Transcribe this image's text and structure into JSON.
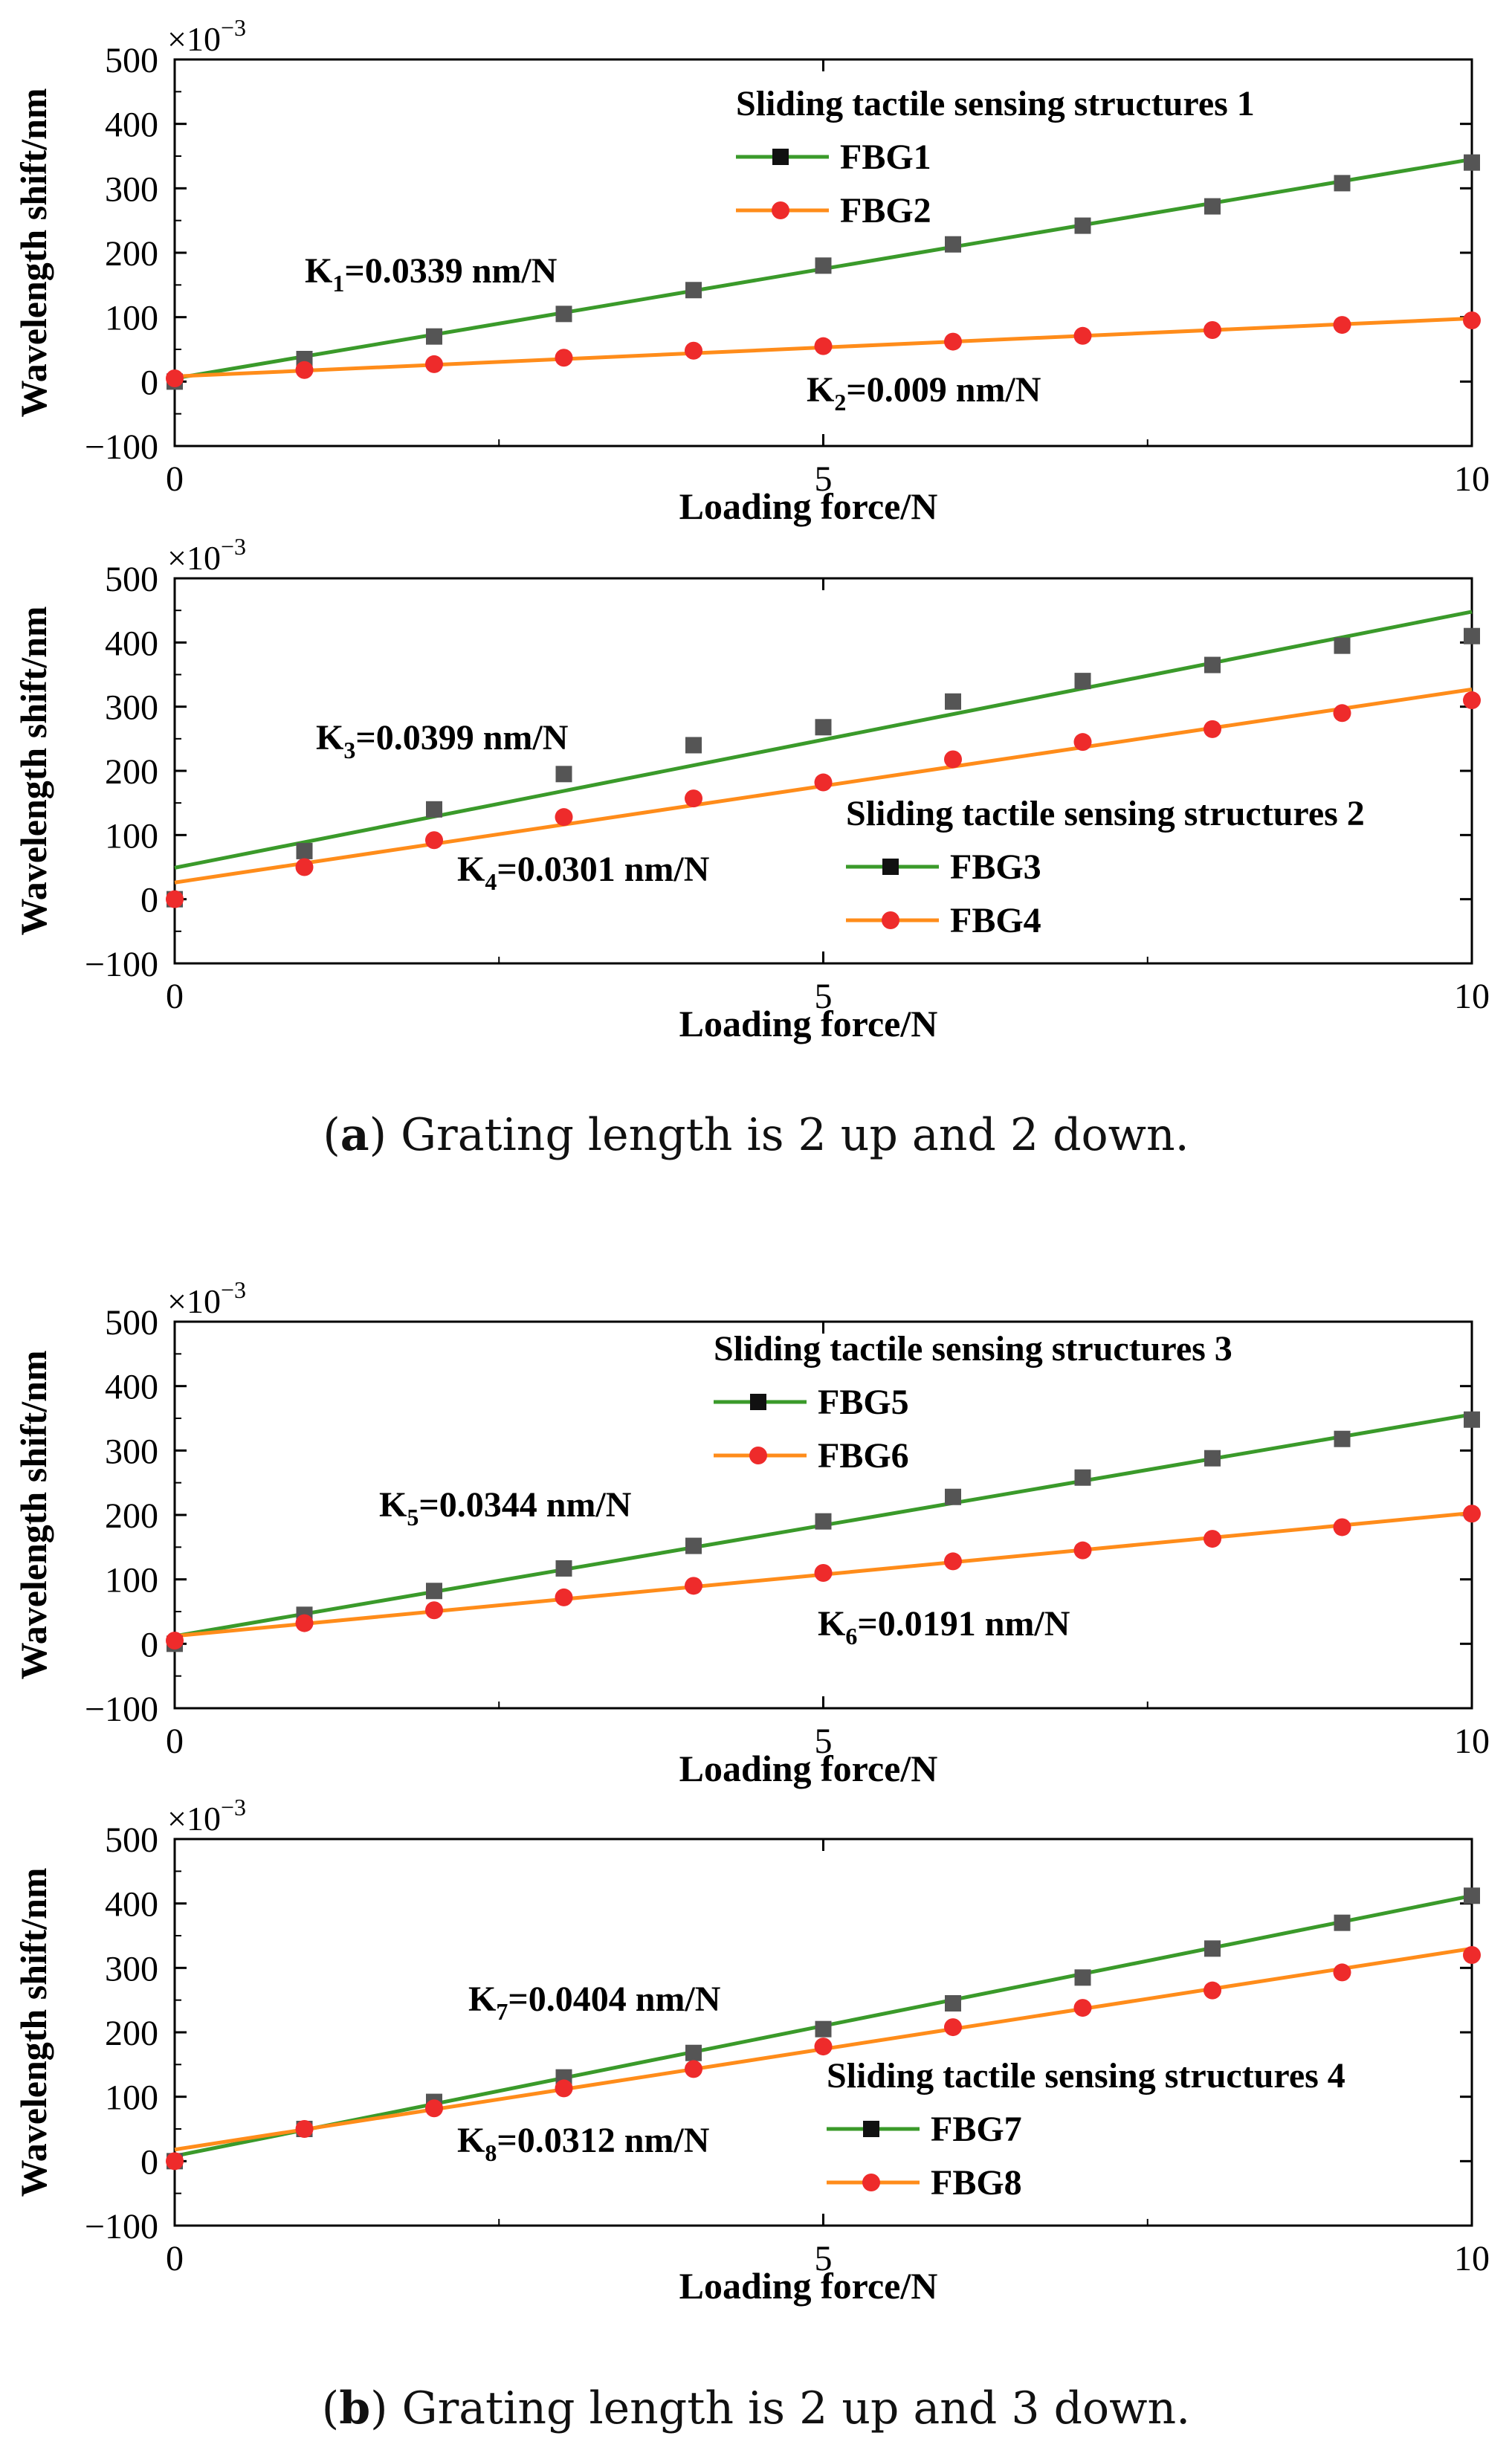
{
  "colors": {
    "green_line": "#3a9a2a",
    "orange_line": "#ff8c1a",
    "square_marker": "#555555",
    "circle_marker": "#ee2b2b",
    "axis": "#000000"
  },
  "captions": [
    {
      "label": "(a)",
      "label_inner": "a",
      "text": "Grating length is 2 up and 2 down."
    },
    {
      "label": "(b)",
      "label_inner": "b",
      "text": "Grating length is 2 up and 3 down."
    }
  ],
  "chart_data": [
    {
      "type": "scatter",
      "title": "",
      "xlabel": "Loading force/N",
      "ylabel": "Wavelength shift/nm",
      "scale_label": "×10",
      "scale_exp": "−3",
      "xlim": [
        0,
        10
      ],
      "ylim": [
        -100,
        500
      ],
      "xticks": [
        0,
        5,
        10
      ],
      "yticks": [
        -100,
        0,
        100,
        200,
        300,
        400,
        500
      ],
      "legend_title": "Sliding tactile sensing structures 1",
      "legend_placement": "top-right",
      "x": [
        0,
        1,
        2,
        3,
        4,
        5,
        6,
        7,
        8,
        9,
        10
      ],
      "series": [
        {
          "name": "FBG1",
          "marker": "square",
          "color": "#555555",
          "line_color": "#3a9a2a",
          "values": [
            0,
            35,
            70,
            105,
            142,
            180,
            213,
            242,
            272,
            308,
            340
          ],
          "fit": {
            "slope": 34,
            "intercept": 5
          },
          "annotation": {
            "K": "K",
            "sub": "1",
            "rest": "=0.0339 nm/N"
          }
        },
        {
          "name": "FBG2",
          "marker": "circle",
          "color": "#ee2b2b",
          "line_color": "#ff8c1a",
          "values": [
            5,
            18,
            27,
            37,
            48,
            55,
            62,
            71,
            80,
            88,
            95
          ],
          "fit": {
            "slope": 9,
            "intercept": 8
          },
          "annotation": {
            "K": "K",
            "sub": "2",
            "rest": "=0.009 nm/N"
          }
        }
      ]
    },
    {
      "type": "scatter",
      "title": "",
      "xlabel": "Loading force/N",
      "ylabel": "Wavelength shift/nm",
      "scale_label": "×10",
      "scale_exp": "−3",
      "xlim": [
        0,
        10
      ],
      "ylim": [
        -100,
        500
      ],
      "xticks": [
        0,
        5,
        10
      ],
      "yticks": [
        -100,
        0,
        100,
        200,
        300,
        400,
        500
      ],
      "legend_title": "Sliding tactile sensing structures 2",
      "legend_placement": "bottom-right",
      "x": [
        0,
        1,
        2,
        3,
        4,
        5,
        6,
        7,
        8,
        9,
        10
      ],
      "series": [
        {
          "name": "FBG3",
          "marker": "square",
          "color": "#555555",
          "line_color": "#3a9a2a",
          "values": [
            0,
            75,
            140,
            195,
            240,
            268,
            308,
            340,
            365,
            395,
            410
          ],
          "fit": {
            "slope": 39.9,
            "intercept": 49
          },
          "annotation": {
            "K": "K",
            "sub": "3",
            "rest": "=0.0399 nm/N"
          }
        },
        {
          "name": "FBG4",
          "marker": "circle",
          "color": "#ee2b2b",
          "line_color": "#ff8c1a",
          "values": [
            0,
            50,
            92,
            128,
            157,
            182,
            218,
            245,
            265,
            290,
            310
          ],
          "fit": {
            "slope": 30.1,
            "intercept": 26
          },
          "annotation": {
            "K": "K",
            "sub": "4",
            "rest": "=0.0301 nm/N"
          }
        }
      ]
    },
    {
      "type": "scatter",
      "title": "",
      "xlabel": "Loading force/N",
      "ylabel": "Wavelength shift/nm",
      "scale_label": "×10",
      "scale_exp": "−3",
      "xlim": [
        0,
        10
      ],
      "ylim": [
        -100,
        500
      ],
      "xticks": [
        0,
        5,
        10
      ],
      "yticks": [
        -100,
        0,
        100,
        200,
        300,
        400,
        500
      ],
      "legend_title": "Sliding tactile sensing structures 3",
      "legend_placement": "top-right",
      "x": [
        0,
        1,
        2,
        3,
        4,
        5,
        6,
        7,
        8,
        9,
        10
      ],
      "series": [
        {
          "name": "FBG5",
          "marker": "square",
          "color": "#555555",
          "line_color": "#3a9a2a",
          "values": [
            0,
            45,
            82,
            117,
            152,
            190,
            228,
            258,
            288,
            318,
            348
          ],
          "fit": {
            "slope": 34.4,
            "intercept": 12
          },
          "annotation": {
            "K": "K",
            "sub": "5",
            "rest": "=0.0344 nm/N"
          }
        },
        {
          "name": "FBG6",
          "marker": "circle",
          "color": "#ee2b2b",
          "line_color": "#ff8c1a",
          "values": [
            5,
            32,
            52,
            72,
            90,
            110,
            128,
            145,
            163,
            181,
            202
          ],
          "fit": {
            "slope": 19.1,
            "intercept": 12
          },
          "annotation": {
            "K": "K",
            "sub": "6",
            "rest": "=0.0191 nm/N"
          }
        }
      ]
    },
    {
      "type": "scatter",
      "title": "",
      "xlabel": "Loading force/N",
      "ylabel": "Wavelength shift/nm",
      "scale_label": "×10",
      "scale_exp": "−3",
      "xlim": [
        0,
        10
      ],
      "ylim": [
        -100,
        500
      ],
      "xticks": [
        0,
        5,
        10
      ],
      "yticks": [
        -100,
        0,
        100,
        200,
        300,
        400,
        500
      ],
      "legend_title": "Sliding tactile sensing structures 4",
      "legend_placement": "bottom-right",
      "x": [
        0,
        1,
        2,
        3,
        4,
        5,
        6,
        7,
        8,
        9,
        10
      ],
      "series": [
        {
          "name": "FBG7",
          "marker": "square",
          "color": "#555555",
          "line_color": "#3a9a2a",
          "values": [
            0,
            50,
            92,
            130,
            168,
            205,
            245,
            285,
            330,
            370,
            412
          ],
          "fit": {
            "slope": 40.4,
            "intercept": 8
          },
          "annotation": {
            "K": "K",
            "sub": "7",
            "rest": "=0.0404 nm/N"
          }
        },
        {
          "name": "FBG8",
          "marker": "circle",
          "color": "#ee2b2b",
          "line_color": "#ff8c1a",
          "values": [
            0,
            50,
            82,
            113,
            143,
            178,
            208,
            238,
            265,
            293,
            320
          ],
          "fit": {
            "slope": 31.2,
            "intercept": 18
          },
          "annotation": {
            "K": "K",
            "sub": "8",
            "rest": "=0.0312 nm/N"
          }
        }
      ]
    }
  ]
}
